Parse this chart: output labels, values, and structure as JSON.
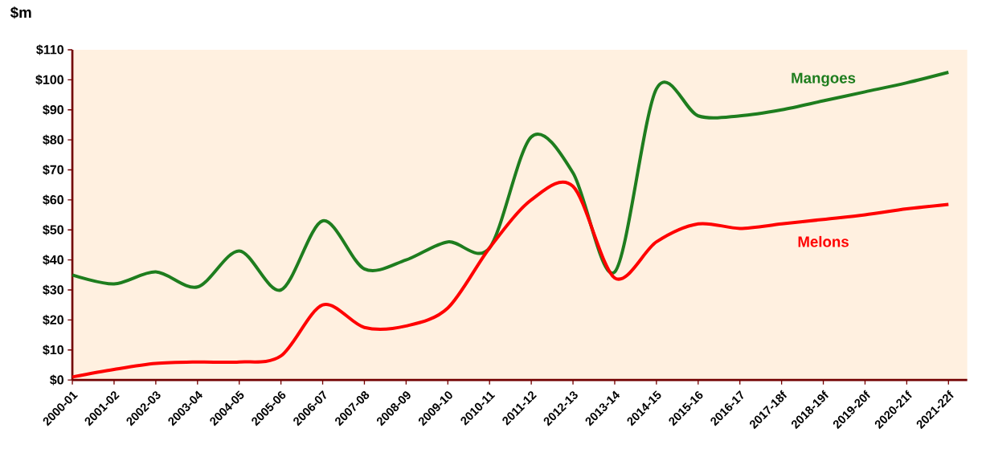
{
  "chart_data": {
    "type": "line",
    "ylabel": "$m",
    "categories": [
      "2000-01",
      "2001-02",
      "2002-03",
      "2003-04",
      "2004-05",
      "2005-06",
      "2006-07",
      "2007-08",
      "2008-09",
      "2009-10",
      "2010-11",
      "2011-12",
      "2012-13",
      "2013-14",
      "2014-15",
      "2015-16",
      "2016-17",
      "2017-18f",
      "2018-19f",
      "2019-20f",
      "2020-21f",
      "2021-22f"
    ],
    "series": [
      {
        "name": "Mangoes",
        "color": "#1e7d1e",
        "values": [
          35,
          32,
          36,
          31,
          43,
          30,
          53,
          37,
          40,
          46,
          44,
          81,
          69,
          36,
          97,
          88,
          88,
          90,
          93,
          96,
          99,
          102.5
        ]
      },
      {
        "name": "Melons",
        "color": "#ff0000",
        "values": [
          1,
          3.5,
          5.5,
          6,
          6,
          8,
          25,
          17.5,
          18,
          24,
          44,
          60,
          64.5,
          34,
          46,
          52,
          50.5,
          52,
          53.5,
          55,
          57,
          58.5
        ]
      }
    ],
    "ylim": [
      0,
      110
    ],
    "yticks": [
      {
        "value": 0,
        "label": "$0"
      },
      {
        "value": 10,
        "label": "$10"
      },
      {
        "value": 20,
        "label": "$20"
      },
      {
        "value": 30,
        "label": "$30"
      },
      {
        "value": 40,
        "label": "$40"
      },
      {
        "value": 50,
        "label": "$50"
      },
      {
        "value": 60,
        "label": "$60"
      },
      {
        "value": 70,
        "label": "$70"
      },
      {
        "value": 80,
        "label": "$80"
      },
      {
        "value": 90,
        "label": "$90"
      },
      {
        "value": 100,
        "label": "$100"
      },
      {
        "value": 110,
        "label": "$110"
      }
    ],
    "grid": false,
    "legend": false,
    "marker": "none",
    "line_style": "solid"
  }
}
